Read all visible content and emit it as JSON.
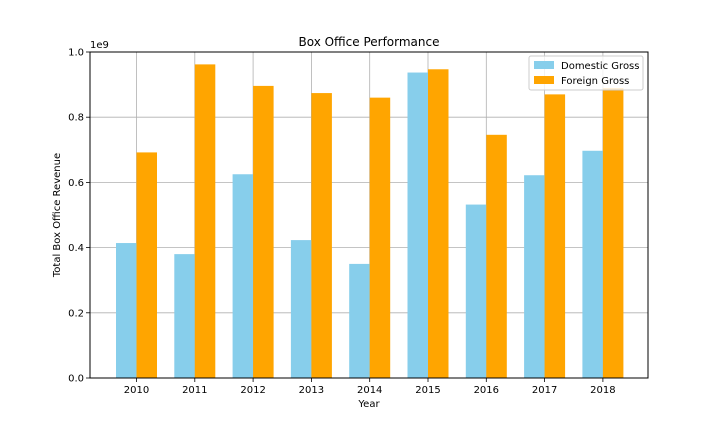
{
  "chart_data": {
    "type": "bar",
    "title": "Box Office Performance",
    "xlabel": "Year",
    "ylabel": "Total Box Office Revenue",
    "scale_note": "1e9",
    "categories": [
      "2010",
      "2011",
      "2012",
      "2013",
      "2014",
      "2015",
      "2016",
      "2017",
      "2018"
    ],
    "series": [
      {
        "name": "Domestic Gross",
        "color": "#87ceeb",
        "values": [
          0.414,
          0.38,
          0.625,
          0.423,
          0.35,
          0.937,
          0.532,
          0.622,
          0.697
        ]
      },
      {
        "name": "Foreign Gross",
        "color": "#ffa500",
        "values": [
          0.692,
          0.962,
          0.896,
          0.874,
          0.86,
          0.947,
          0.746,
          0.87,
          0.889
        ]
      }
    ],
    "ylim": [
      0,
      1.0
    ],
    "yticks": [
      "0.0",
      "0.2",
      "0.4",
      "0.6",
      "0.8",
      "1.0"
    ],
    "grid": true,
    "legend_position": "top-right"
  }
}
